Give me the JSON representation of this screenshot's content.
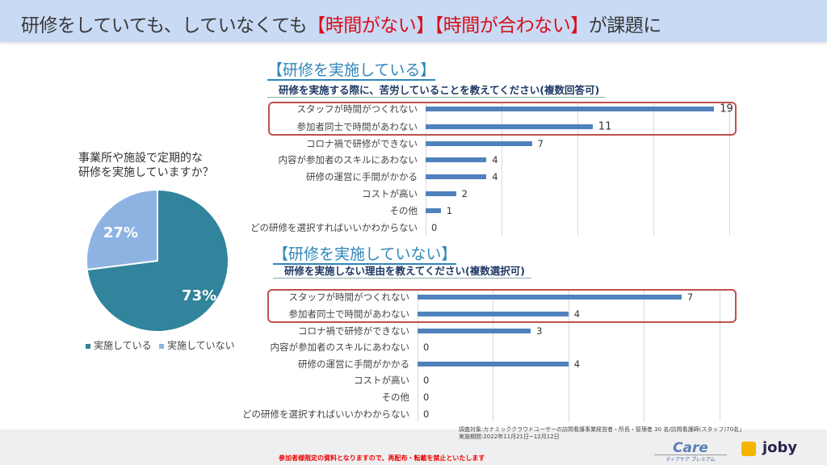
{
  "header": {
    "title_a": "研修をしていても、していなくても",
    "title_b": "【時間がない】【時間が合わない】",
    "title_c": "が課題に"
  },
  "pie": {
    "question": [
      "事業所や施設で定期的な",
      "研修を実施していますか？"
    ],
    "slices": [
      {
        "label": "実施している",
        "value": 73,
        "text": "73%",
        "color": "#31849b"
      },
      {
        "label": "実施していない",
        "value": 27,
        "text": "27%",
        "color": "#8db3e2"
      }
    ]
  },
  "chart_data": [
    {
      "type": "bar",
      "title": "【研修を実施している】",
      "subtitle": "研修を実施する際に、苦労していることを教えてください(複数回答可)",
      "xlim": [
        0,
        20
      ],
      "categories": [
        "スタッフが時間がつくれない",
        "参加者同士で時間があわない",
        "コロナ禍で研修ができない",
        "内容が参加者のスキルにあわない",
        "研修の運営に手間がかかる",
        "コストが高い",
        "その他",
        "どの研修を選択すればいいかわからない"
      ],
      "values": [
        19,
        11,
        7,
        4,
        4,
        2,
        1,
        0
      ],
      "highlighted": [
        0,
        1
      ]
    },
    {
      "type": "bar",
      "title": "【研修を実施していない】",
      "subtitle": "研修を実施しない理由を教えてください(複数選択可)",
      "xlim": [
        0,
        8
      ],
      "categories": [
        "スタッフが時間がつくれない",
        "参加者同士で時間があわない",
        "コロナ禍で研修ができない",
        "内容が参加者のスキルにあわない",
        "研修の運営に手間がかかる",
        "コストが高い",
        "その他",
        "どの研修を選択すればいいかわからない"
      ],
      "values": [
        7,
        4,
        3,
        0,
        4,
        0,
        0,
        0
      ],
      "highlighted": [
        0,
        1
      ]
    }
  ],
  "note": [
    "調査対象:カナミッククラウドユーザーの訪問看護事業経営者・所長・管理者 30 名/訪問看護師(スタッフ)70名」",
    "実施期間:2022年11月21日~12月12日"
  ],
  "footer": {
    "warning": "参加者様限定の資料となりますので、再配布・転載を禁止といたします",
    "logo1": "Care",
    "logo1_sub": "ディアケア プレミアム",
    "logo2": "joby"
  }
}
